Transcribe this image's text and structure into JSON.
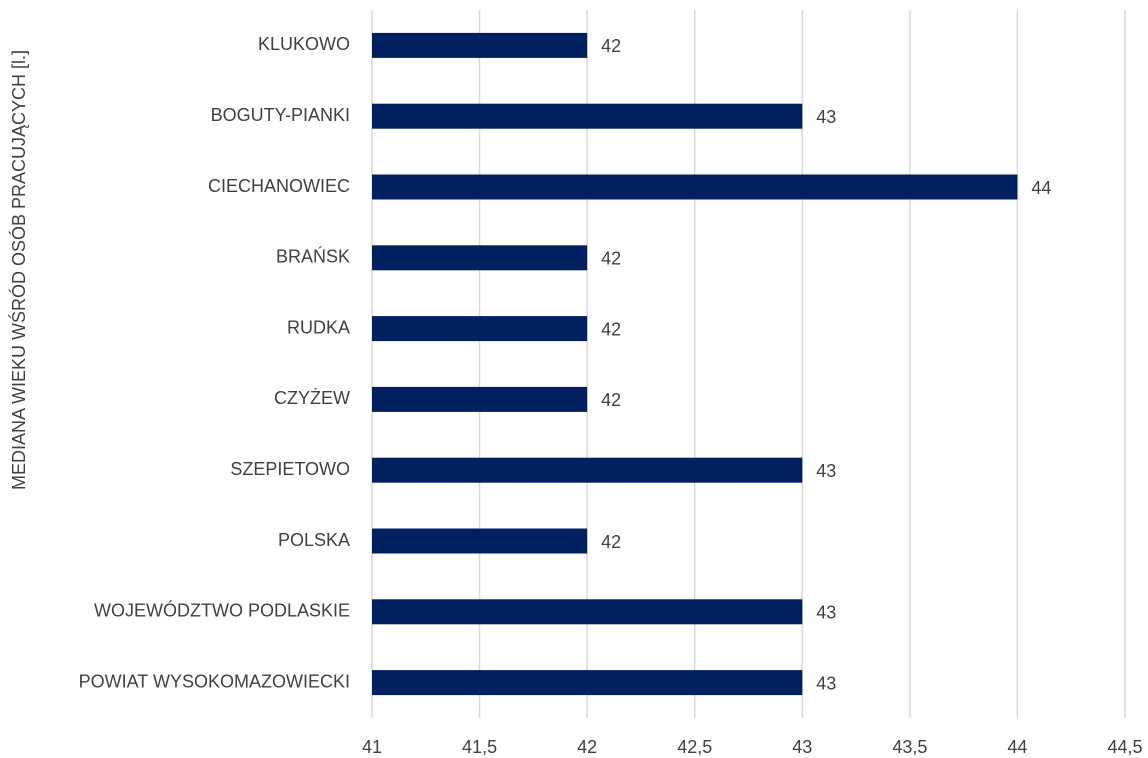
{
  "chart_data": {
    "type": "barh",
    "y_axis_label": "MEDIANA WIEKU WŚRÓD OSÓB PRACUJĄCYCH [l.]",
    "categories": [
      "KLUKOWO",
      "BOGUTY-PIANKI",
      "CIECHANOWIEC",
      "BRAŃSK",
      "RUDKA",
      "CZYŻEW",
      "SZEPIETOWO",
      "POLSKA",
      "WOJEWÓDZTWO PODLASKIE",
      "POWIAT WYSOKOMAZOWIECKI"
    ],
    "values": [
      42,
      43,
      44,
      42,
      42,
      42,
      43,
      42,
      43,
      43
    ],
    "color": "#002060",
    "xlim": [
      41,
      44.5
    ],
    "xticks": [
      41,
      {
        "value": 41.5,
        "label": "41,5"
      },
      42,
      {
        "value": 42.5,
        "label": "42,5"
      },
      43,
      {
        "value": 43.5,
        "label": "43,5"
      },
      44,
      {
        "value": 44.5,
        "label": "44,5"
      }
    ],
    "grid": true
  }
}
